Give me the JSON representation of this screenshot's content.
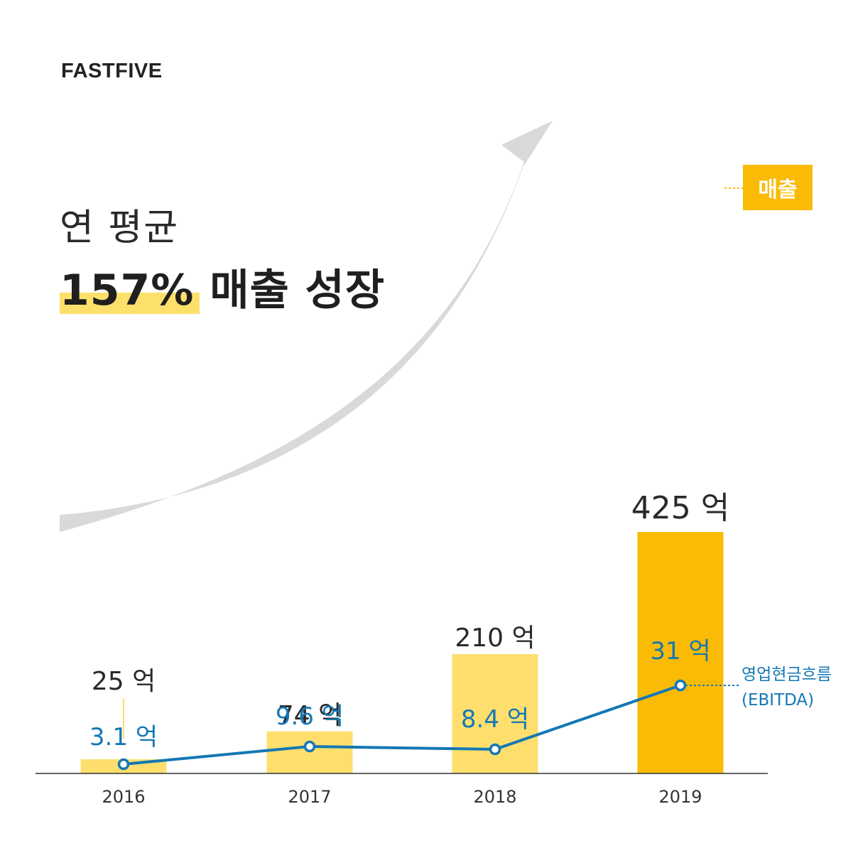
{
  "brand": "FASTFIVE",
  "headline": {
    "line1": "연 평균",
    "highlight": "157%",
    "rest": "매출 성장"
  },
  "legend": {
    "revenue": "매출",
    "ebitda_line1": "영업현금흐름",
    "ebitda_line2": "(EBITDA)"
  },
  "colors": {
    "bar_light": "#fedf6e",
    "bar_highlight": "#fabb06",
    "ebitda_line": "#1478b4",
    "arrow": "#d9d9d9",
    "axis": "#333333"
  },
  "chart_data": {
    "type": "bar",
    "categories": [
      "2016",
      "2017",
      "2018",
      "2019"
    ],
    "series": [
      {
        "name": "매출",
        "type": "bar",
        "values": [
          25,
          74,
          210,
          425
        ],
        "labels": [
          "25 억",
          "74 억",
          "210 억",
          "425 억"
        ]
      },
      {
        "name": "영업현금흐름 (EBITDA)",
        "type": "line",
        "values": [
          3.1,
          9.6,
          8.4,
          31
        ],
        "labels": [
          "3.1 억",
          "9.6 억",
          "8.4 억",
          "31 억"
        ]
      }
    ],
    "highlight_index": 3,
    "grid": false
  }
}
